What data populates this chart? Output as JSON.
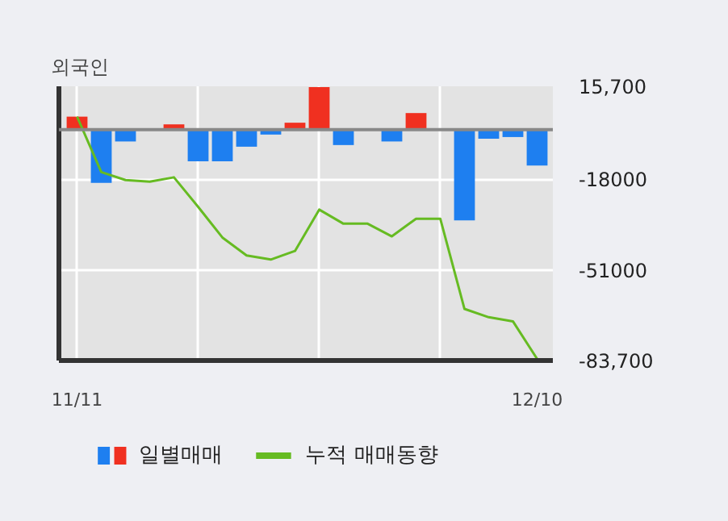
{
  "chart_data": {
    "type": "bar",
    "title": "외국인",
    "categories": [
      "11/11",
      null,
      null,
      null,
      null,
      null,
      null,
      null,
      null,
      null,
      null,
      null,
      null,
      null,
      null,
      null,
      null,
      null,
      null,
      "12/10"
    ],
    "series": [
      {
        "name": "일별매매",
        "values": [
          4700,
          -19300,
          -4300,
          null,
          1900,
          -11500,
          -11500,
          -6200,
          -1800,
          2500,
          15400,
          -5600,
          0,
          -4300,
          6000,
          0,
          -32900,
          -3300,
          -2700,
          -13000
        ],
        "colors": [
          "#f03020",
          "#1e7ff0",
          "#1e7ff0",
          "#1e7ff0",
          "#f03020",
          "#1e7ff0",
          "#1e7ff0",
          "#1e7ff0",
          "#1e7ff0",
          "#f03020",
          "#f03020",
          "#1e7ff0",
          "#1e7ff0",
          "#1e7ff0",
          "#f03020",
          "#1e7ff0",
          "#1e7ff0",
          "#1e7ff0",
          "#1e7ff0",
          "#1e7ff0"
        ]
      },
      {
        "name": "누적 매매동향",
        "type": "line",
        "color": "#66bb22",
        "values": [
          4700,
          -15400,
          -18300,
          -18900,
          -17300,
          -28000,
          -39100,
          -45600,
          -47100,
          -44000,
          -29000,
          -34100,
          -34100,
          -38700,
          -32300,
          -32300,
          -65000,
          -68000,
          -69500,
          -83100
        ]
      }
    ],
    "ylim": [
      -83700,
      15700
    ],
    "yticks": [
      {
        "value": 15700,
        "label": "15,700"
      },
      {
        "value": -18000,
        "label": "-18000"
      },
      {
        "value": -51000,
        "label": "-51000"
      },
      {
        "value": -83700,
        "label": "-83,700"
      }
    ],
    "ref_lines": [
      {
        "axis": "y",
        "value": 0,
        "color": "#888888"
      }
    ],
    "grid": true,
    "legend": "bottom"
  }
}
